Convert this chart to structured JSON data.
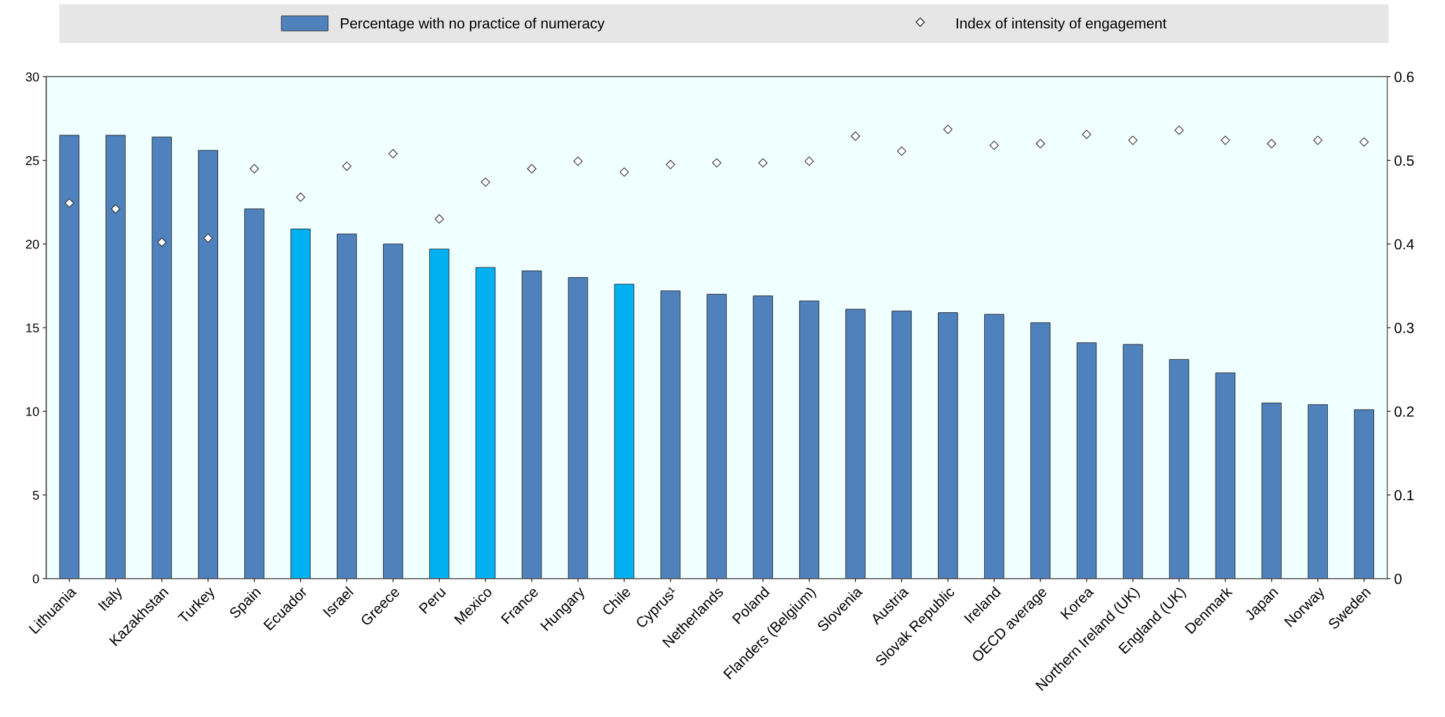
{
  "chart_data": {
    "type": "bar",
    "categories": [
      "Lithuania",
      "Italy",
      "Kazakhstan",
      "Turkey",
      "Spain",
      "Ecuador",
      "Israel",
      "Greece",
      "Peru",
      "Mexico",
      "France",
      "Hungary",
      "Chile",
      "Cyprus¹",
      "Netherlands",
      "Poland",
      "Flanders (Belgium)",
      "Slovenia",
      "Austria",
      "Slovak Republic",
      "Ireland",
      "OECD average",
      "Korea",
      "Northern Ireland (UK)",
      "England (UK)",
      "Denmark",
      "Japan",
      "Norway",
      "Sweden"
    ],
    "series": [
      {
        "name": "Percentage with no practice of numeracy",
        "color": "#4f81bd",
        "colors": [
          "#4f81bd",
          "#4f81bd",
          "#4f81bd",
          "#4f81bd",
          "#4f81bd",
          "#00b0f0",
          "#4f81bd",
          "#4f81bd",
          "#00b0f0",
          "#00b0f0",
          "#4f81bd",
          "#4f81bd",
          "#00b0f0",
          "#4f81bd",
          "#4f81bd",
          "#4f81bd",
          "#4f81bd",
          "#4f81bd",
          "#4f81bd",
          "#4f81bd",
          "#4f81bd",
          "#4f81bd",
          "#4f81bd",
          "#4f81bd",
          "#4f81bd",
          "#4f81bd",
          "#4f81bd",
          "#4f81bd",
          "#4f81bd"
        ],
        "values": [
          26.5,
          26.5,
          26.4,
          25.6,
          22.1,
          20.9,
          20.6,
          20.0,
          19.7,
          18.6,
          18.4,
          18.0,
          17.6,
          17.2,
          17.0,
          16.9,
          16.6,
          16.1,
          16.0,
          15.9,
          15.8,
          15.3,
          14.1,
          14.0,
          13.1,
          12.3,
          10.5,
          10.4,
          10.1
        ]
      },
      {
        "name": "Index of intensity of engagement",
        "type": "scatter",
        "axis": "y2",
        "color": "#ffffff",
        "marker": "diamond",
        "values": [
          0.449,
          0.442,
          0.402,
          0.407,
          0.49,
          0.456,
          0.493,
          0.508,
          0.43,
          0.474,
          0.49,
          0.499,
          0.486,
          0.495,
          0.497,
          0.497,
          0.499,
          0.529,
          0.511,
          0.537,
          0.518,
          0.52,
          0.531,
          0.524,
          0.536,
          0.524,
          0.52,
          0.524,
          0.522
        ]
      }
    ],
    "ylim": [
      0,
      30
    ],
    "yticks": [
      0,
      5,
      10,
      15,
      20,
      25,
      30
    ],
    "y2lim": [
      0,
      0.6
    ],
    "y2ticks": [
      {
        "value": 0,
        "label": "0"
      },
      0.1,
      0.2,
      0.3,
      0.4,
      0.5,
      0.6
    ],
    "grid": false,
    "legend": "top"
  }
}
